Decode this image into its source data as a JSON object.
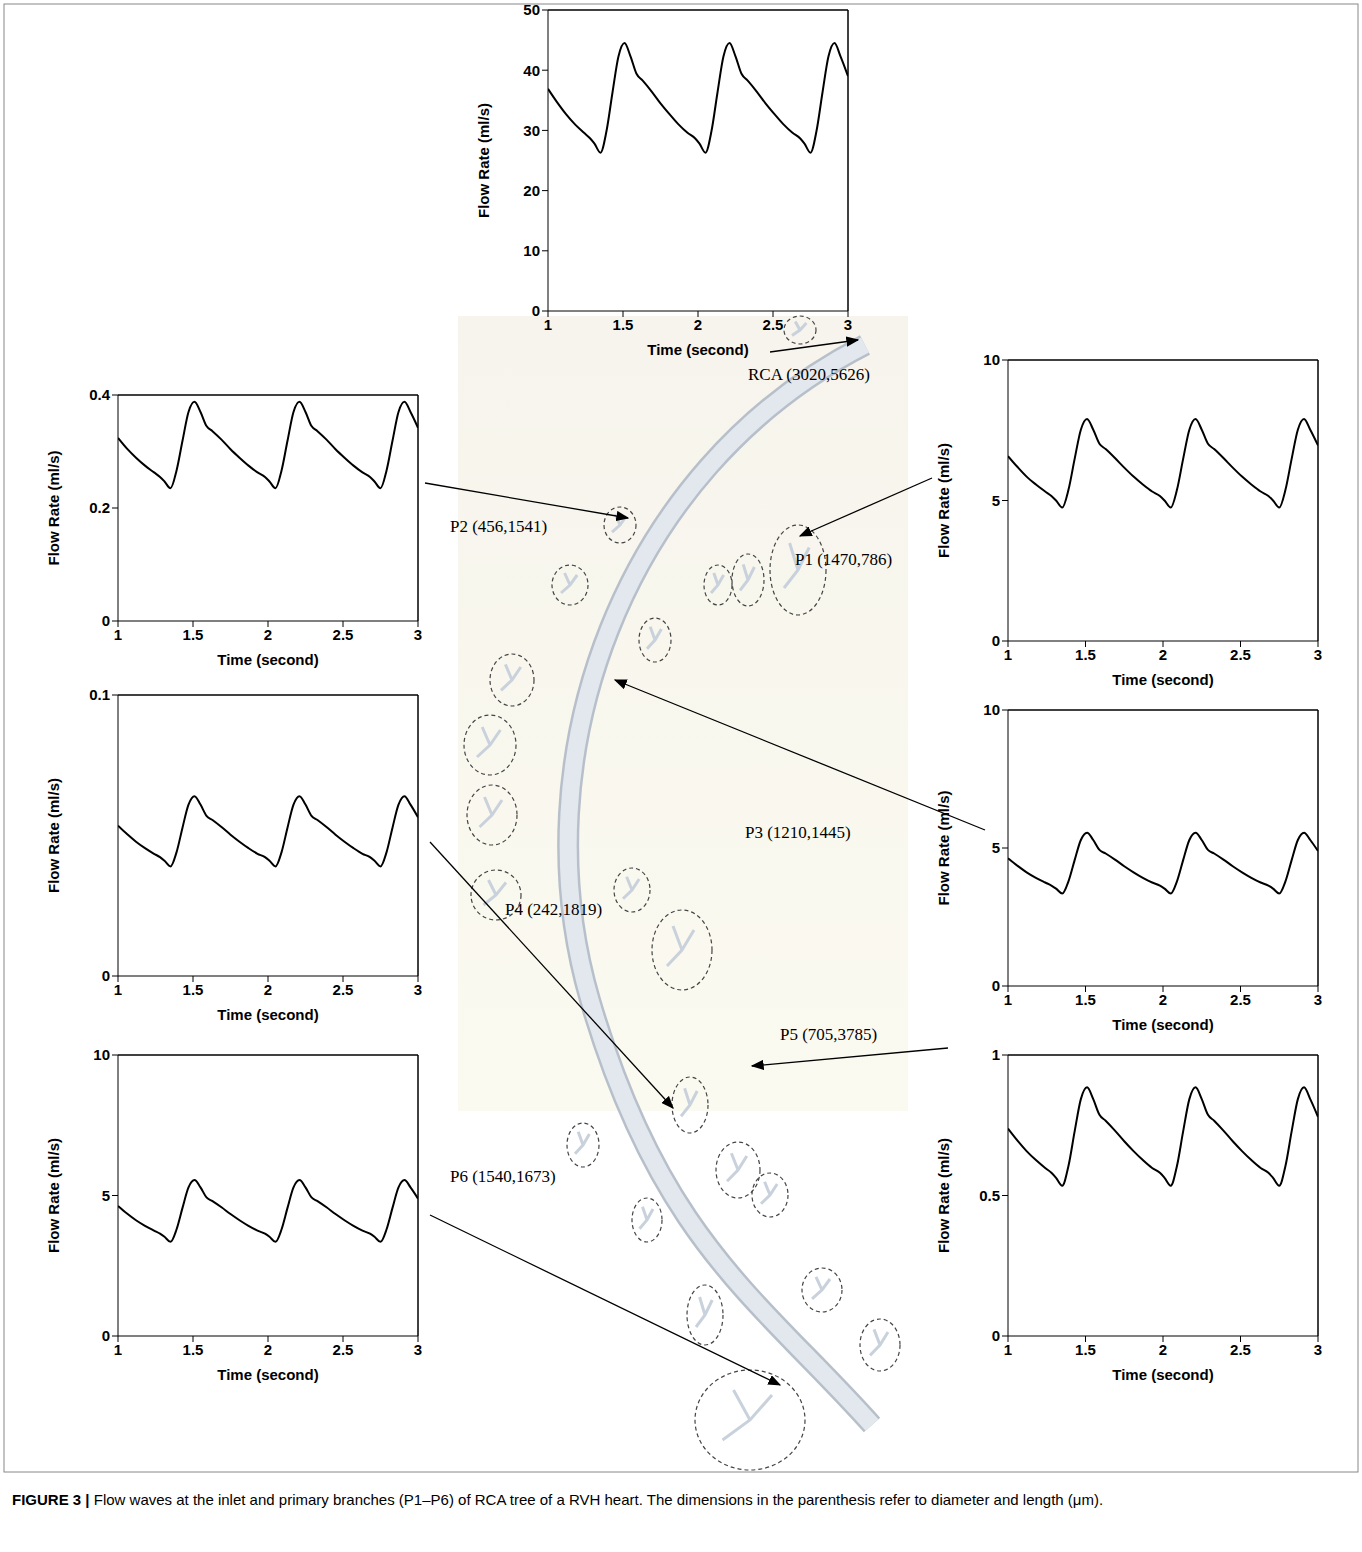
{
  "chart_data": [
    {
      "type": "line",
      "annotation": "RCA (3020,5626)",
      "x_label": "Time (second)",
      "y_label": "Flow Rate (ml/s)",
      "color": "#000000",
      "x": [
        1,
        1.06,
        1.12,
        1.18,
        1.24,
        1.28,
        1.31,
        1.35,
        1.39,
        1.43,
        1.47,
        1.51,
        1.55,
        1.59,
        1.63,
        1.69,
        1.75,
        1.81,
        1.87,
        1.93,
        1.98,
        2.01,
        2.05,
        2.09,
        2.13,
        2.17,
        2.21,
        2.25,
        2.29,
        2.33,
        2.39,
        2.45,
        2.51,
        2.57,
        2.63,
        2.68,
        2.71,
        2.75,
        2.79,
        2.83,
        2.87,
        2.91,
        2.95,
        3
      ],
      "values": [
        36.9,
        34.7,
        32.7,
        31,
        29.6,
        28.7,
        27.8,
        26.3,
        29.9,
        36.3,
        42.3,
        44.5,
        42.3,
        39.4,
        38.3,
        36.5,
        34.5,
        32.7,
        31,
        29.6,
        28.7,
        27.8,
        26.3,
        29.9,
        36.3,
        42.3,
        44.5,
        42.3,
        39.4,
        38.3,
        36.5,
        34.5,
        32.7,
        31,
        29.6,
        28.7,
        27.8,
        26.3,
        29.9,
        36.3,
        42.3,
        44.5,
        42.3,
        39
      ],
      "xlim": [
        1,
        3
      ],
      "xticks": [
        1,
        1.5,
        2,
        2.5,
        3
      ],
      "ylim": [
        0,
        50
      ],
      "yticks": [
        0,
        10,
        20,
        30,
        40,
        50
      ]
    },
    {
      "type": "line",
      "annotation": "P2 (456,1541)",
      "x_label": "Time (second)",
      "y_label": "Flow Rate (ml/s)",
      "color": "#000000",
      "x": [
        1,
        1.06,
        1.12,
        1.18,
        1.24,
        1.28,
        1.31,
        1.35,
        1.39,
        1.43,
        1.47,
        1.51,
        1.55,
        1.59,
        1.63,
        1.69,
        1.75,
        1.81,
        1.87,
        1.93,
        1.98,
        2.01,
        2.05,
        2.09,
        2.13,
        2.17,
        2.21,
        2.25,
        2.29,
        2.33,
        2.39,
        2.45,
        2.51,
        2.57,
        2.63,
        2.68,
        2.71,
        2.75,
        2.79,
        2.83,
        2.87,
        2.91,
        2.95,
        3
      ],
      "values": [
        0.324,
        0.305,
        0.289,
        0.275,
        0.263,
        0.255,
        0.247,
        0.235,
        0.266,
        0.319,
        0.37,
        0.388,
        0.37,
        0.345,
        0.336,
        0.321,
        0.304,
        0.289,
        0.275,
        0.263,
        0.255,
        0.247,
        0.235,
        0.266,
        0.319,
        0.37,
        0.388,
        0.37,
        0.345,
        0.336,
        0.321,
        0.304,
        0.289,
        0.275,
        0.263,
        0.255,
        0.247,
        0.235,
        0.266,
        0.319,
        0.37,
        0.388,
        0.37,
        0.342
      ],
      "xlim": [
        1,
        3
      ],
      "xticks": [
        1,
        1.5,
        2,
        2.5,
        3
      ],
      "ylim": [
        0,
        0.4
      ],
      "yticks": [
        0,
        0.2,
        0.4
      ]
    },
    {
      "type": "line",
      "annotation": "P1 (1470,786)",
      "x_label": "Time (second)",
      "y_label": "Flow Rate (ml/s)",
      "color": "#000000",
      "x": [
        1,
        1.06,
        1.12,
        1.18,
        1.24,
        1.28,
        1.31,
        1.35,
        1.39,
        1.43,
        1.47,
        1.51,
        1.55,
        1.59,
        1.63,
        1.69,
        1.75,
        1.81,
        1.87,
        1.93,
        1.98,
        2.01,
        2.05,
        2.09,
        2.13,
        2.17,
        2.21,
        2.25,
        2.29,
        2.33,
        2.39,
        2.45,
        2.51,
        2.57,
        2.63,
        2.68,
        2.71,
        2.75,
        2.79,
        2.83,
        2.87,
        2.91,
        2.95,
        3
      ],
      "values": [
        6.58,
        6.2,
        5.85,
        5.57,
        5.32,
        5.16,
        5,
        4.75,
        5.38,
        6.48,
        7.52,
        7.9,
        7.52,
        7.02,
        6.83,
        6.51,
        6.17,
        5.85,
        5.57,
        5.32,
        5.16,
        5,
        4.75,
        5.38,
        6.48,
        7.52,
        7.9,
        7.52,
        7.02,
        6.83,
        6.51,
        6.17,
        5.85,
        5.57,
        5.32,
        5.16,
        5,
        4.75,
        5.38,
        6.48,
        7.52,
        7.9,
        7.52,
        6.96
      ],
      "xlim": [
        1,
        3
      ],
      "xticks": [
        1,
        1.5,
        2,
        2.5,
        3
      ],
      "ylim": [
        0,
        10
      ],
      "yticks": [
        0,
        5,
        10
      ]
    },
    {
      "type": "line",
      "annotation": "P4 (242,1819)",
      "x_label": "Time (second)",
      "y_label": "Flow Rate (ml/s)",
      "color": "#000000",
      "x": [
        1,
        1.06,
        1.12,
        1.18,
        1.24,
        1.28,
        1.31,
        1.35,
        1.39,
        1.43,
        1.47,
        1.51,
        1.55,
        1.59,
        1.63,
        1.69,
        1.75,
        1.81,
        1.87,
        1.93,
        1.98,
        2.01,
        2.05,
        2.09,
        2.13,
        2.17,
        2.21,
        2.25,
        2.29,
        2.33,
        2.39,
        2.45,
        2.51,
        2.57,
        2.63,
        2.68,
        2.71,
        2.75,
        2.79,
        2.83,
        2.87,
        2.91,
        2.95,
        3
      ],
      "values": [
        0.0535,
        0.0505,
        0.0478,
        0.0455,
        0.0435,
        0.0423,
        0.041,
        0.039,
        0.044,
        0.0528,
        0.061,
        0.064,
        0.061,
        0.057,
        0.0555,
        0.053,
        0.0503,
        0.0478,
        0.0455,
        0.0435,
        0.0423,
        0.041,
        0.039,
        0.044,
        0.0528,
        0.061,
        0.064,
        0.061,
        0.057,
        0.0555,
        0.053,
        0.0503,
        0.0478,
        0.0455,
        0.0435,
        0.0423,
        0.041,
        0.039,
        0.044,
        0.0528,
        0.061,
        0.064,
        0.061,
        0.0565
      ],
      "xlim": [
        1,
        3
      ],
      "xticks": [
        1,
        1.5,
        2,
        2.5,
        3
      ],
      "ylim": [
        0,
        0.1
      ],
      "yticks": [
        0,
        0.1
      ]
    },
    {
      "type": "line",
      "annotation": "P3 (1210,1445)",
      "x_label": "Time (second)",
      "y_label": "Flow Rate (ml/s)",
      "color": "#000000",
      "x": [
        1,
        1.06,
        1.12,
        1.18,
        1.24,
        1.28,
        1.31,
        1.35,
        1.39,
        1.43,
        1.47,
        1.51,
        1.55,
        1.59,
        1.63,
        1.69,
        1.75,
        1.81,
        1.87,
        1.93,
        1.98,
        2.01,
        2.05,
        2.09,
        2.13,
        2.17,
        2.21,
        2.25,
        2.29,
        2.33,
        2.39,
        2.45,
        2.51,
        2.57,
        2.63,
        2.68,
        2.71,
        2.75,
        2.79,
        2.83,
        2.87,
        2.91,
        2.95,
        3
      ],
      "values": [
        4.63,
        4.36,
        4.12,
        3.92,
        3.75,
        3.64,
        3.53,
        3.35,
        3.79,
        4.56,
        5.29,
        5.55,
        5.29,
        4.93,
        4.8,
        4.58,
        4.34,
        4.12,
        3.92,
        3.75,
        3.64,
        3.53,
        3.35,
        3.79,
        4.56,
        5.29,
        5.55,
        5.29,
        4.93,
        4.8,
        4.58,
        4.34,
        4.12,
        3.92,
        3.75,
        3.64,
        3.53,
        3.35,
        3.79,
        4.56,
        5.29,
        5.55,
        5.29,
        4.89
      ],
      "xlim": [
        1,
        3
      ],
      "xticks": [
        1,
        1.5,
        2,
        2.5,
        3
      ],
      "ylim": [
        0,
        10
      ],
      "yticks": [
        0,
        5,
        10
      ]
    },
    {
      "type": "line",
      "annotation": "P6 (1540,1673)",
      "x_label": "Time (second)",
      "y_label": "Flow Rate (ml/s)",
      "color": "#000000",
      "x": [
        1,
        1.06,
        1.12,
        1.18,
        1.24,
        1.28,
        1.31,
        1.35,
        1.39,
        1.43,
        1.47,
        1.51,
        1.55,
        1.59,
        1.63,
        1.69,
        1.75,
        1.81,
        1.87,
        1.93,
        1.98,
        2.01,
        2.05,
        2.09,
        2.13,
        2.17,
        2.21,
        2.25,
        2.29,
        2.33,
        2.39,
        2.45,
        2.51,
        2.57,
        2.63,
        2.68,
        2.71,
        2.75,
        2.79,
        2.83,
        2.87,
        2.91,
        2.95,
        3
      ],
      "values": [
        4.63,
        4.36,
        4.12,
        3.92,
        3.75,
        3.64,
        3.53,
        3.35,
        3.79,
        4.56,
        5.29,
        5.55,
        5.29,
        4.93,
        4.8,
        4.58,
        4.34,
        4.12,
        3.92,
        3.75,
        3.64,
        3.53,
        3.35,
        3.79,
        4.56,
        5.29,
        5.55,
        5.29,
        4.93,
        4.8,
        4.58,
        4.34,
        4.12,
        3.92,
        3.75,
        3.64,
        3.53,
        3.35,
        3.79,
        4.56,
        5.29,
        5.55,
        5.29,
        4.89
      ],
      "xlim": [
        1,
        3
      ],
      "xticks": [
        1,
        1.5,
        2,
        2.5,
        3
      ],
      "ylim": [
        0,
        10
      ],
      "yticks": [
        0,
        5,
        10
      ]
    },
    {
      "type": "line",
      "annotation": "P5 (705,3785)",
      "x_label": "Time (second)",
      "y_label": "Flow Rate (ml/s)",
      "color": "#000000",
      "x": [
        1,
        1.06,
        1.12,
        1.18,
        1.24,
        1.28,
        1.31,
        1.35,
        1.39,
        1.43,
        1.47,
        1.51,
        1.55,
        1.59,
        1.63,
        1.69,
        1.75,
        1.81,
        1.87,
        1.93,
        1.98,
        2.01,
        2.05,
        2.09,
        2.13,
        2.17,
        2.21,
        2.25,
        2.29,
        2.33,
        2.39,
        2.45,
        2.51,
        2.57,
        2.63,
        2.68,
        2.71,
        2.75,
        2.79,
        2.83,
        2.87,
        2.91,
        2.95,
        3
      ],
      "values": [
        0.738,
        0.696,
        0.658,
        0.626,
        0.598,
        0.581,
        0.563,
        0.535,
        0.605,
        0.728,
        0.843,
        0.885,
        0.843,
        0.787,
        0.766,
        0.731,
        0.693,
        0.658,
        0.626,
        0.598,
        0.581,
        0.563,
        0.535,
        0.605,
        0.728,
        0.843,
        0.885,
        0.843,
        0.787,
        0.766,
        0.731,
        0.693,
        0.658,
        0.626,
        0.598,
        0.581,
        0.563,
        0.535,
        0.605,
        0.728,
        0.843,
        0.885,
        0.843,
        0.78
      ],
      "xlim": [
        1,
        3
      ],
      "xticks": [
        1,
        1.5,
        2,
        2.5,
        3
      ],
      "ylim": [
        0,
        1
      ],
      "yticks": [
        0,
        0.5,
        1
      ]
    }
  ],
  "caption_label": "FIGURE 3 |",
  "caption": "Flow waves at the inlet and primary branches (P1–P6) of RCA tree of a RVH heart. The dimensions in the parenthesis refer to diameter and length (μm)."
}
